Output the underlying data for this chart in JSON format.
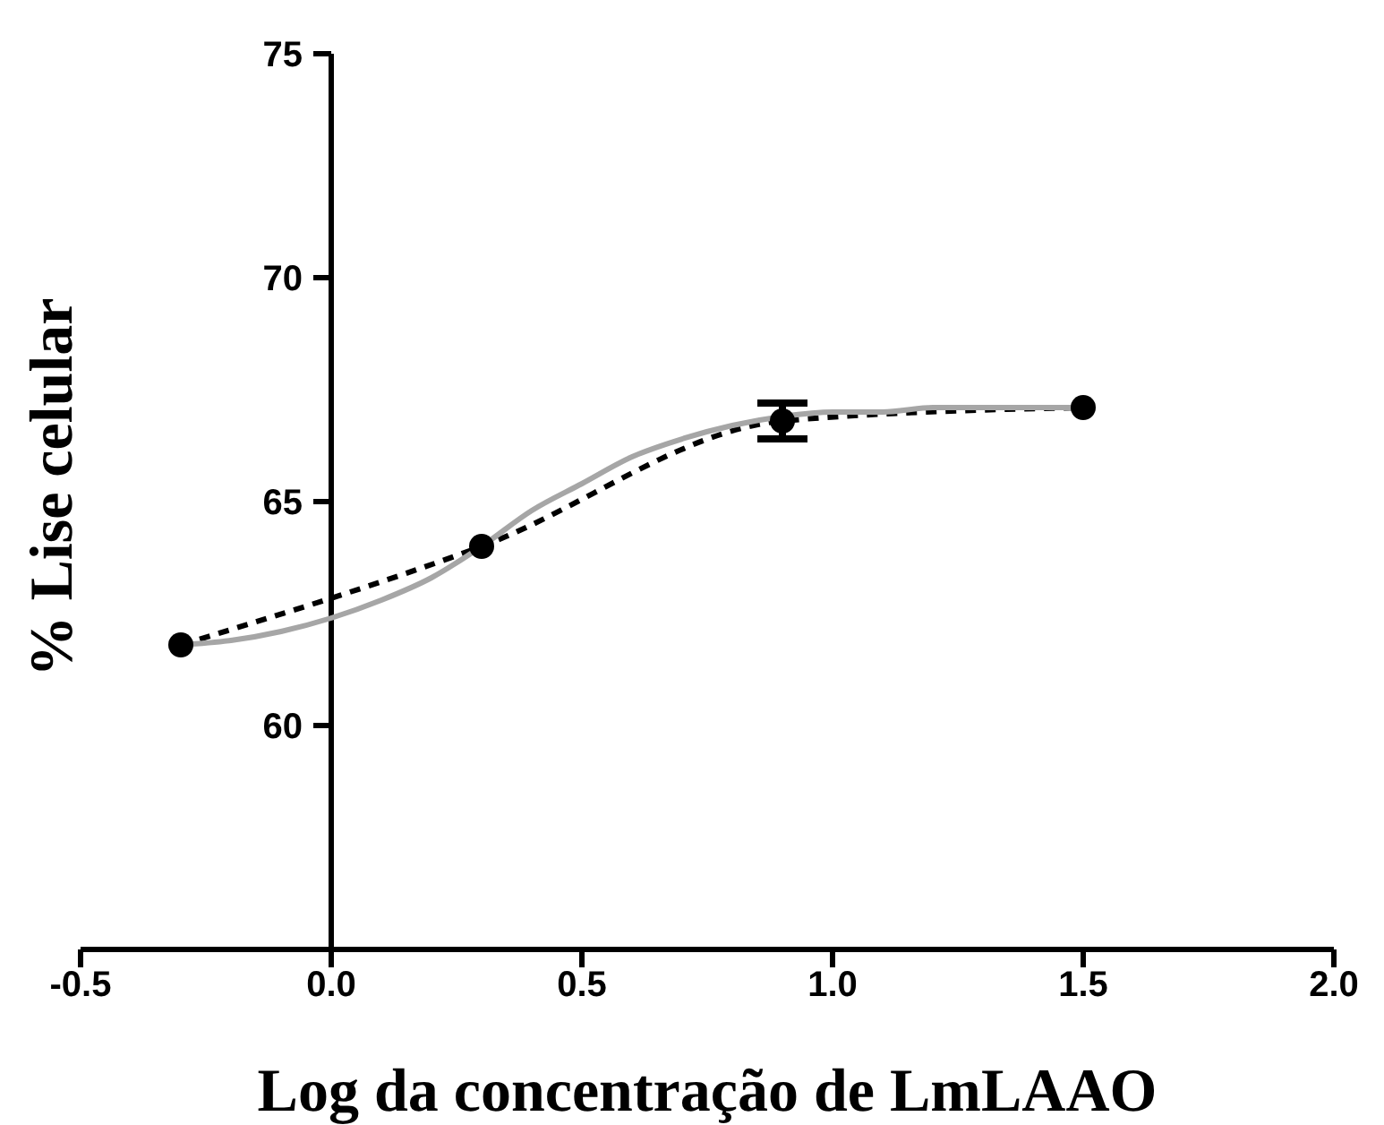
{
  "chart_data": {
    "type": "line",
    "xlabel": "Log da concentração de LmLAAO",
    "ylabel": "% Lise celular",
    "xlim": [
      -0.5,
      2.0
    ],
    "xticks": [
      -0.5,
      {
        "value": 0,
        "label": "0.0"
      },
      0.5,
      {
        "value": 1,
        "label": "1.0"
      },
      1.5,
      {
        "value": 2,
        "label": "2.0"
      }
    ],
    "ylim": [
      55,
      75
    ],
    "yticks": [
      60,
      65,
      70,
      75
    ],
    "grid": false,
    "legend": false,
    "series": [
      {
        "x": [
          -0.3,
          0.3,
          0.9,
          1.5
        ],
        "values": [
          61.8,
          64.0,
          66.8,
          67.1
        ],
        "errors": [
          null,
          null,
          0.4,
          null
        ],
        "color": "#000000",
        "line_style": "dashed",
        "marker": "circle"
      },
      {
        "x": [
          -0.3,
          -0.2,
          -0.1,
          0,
          0.1,
          0.2,
          0.3,
          0.4,
          0.5,
          0.6,
          0.7,
          0.8,
          0.9,
          1.0,
          1.1,
          1.2,
          1.3,
          1.4,
          1.5
        ],
        "values": [
          61.8,
          61.9,
          62.1,
          62.4,
          62.8,
          63.3,
          64.0,
          64.8,
          65.4,
          66.0,
          66.4,
          66.7,
          66.9,
          67.0,
          67.0,
          67.1,
          67.1,
          67.1,
          67.1
        ],
        "color": "#a6a6a6",
        "line_style": "solid",
        "marker": "none"
      }
    ]
  }
}
